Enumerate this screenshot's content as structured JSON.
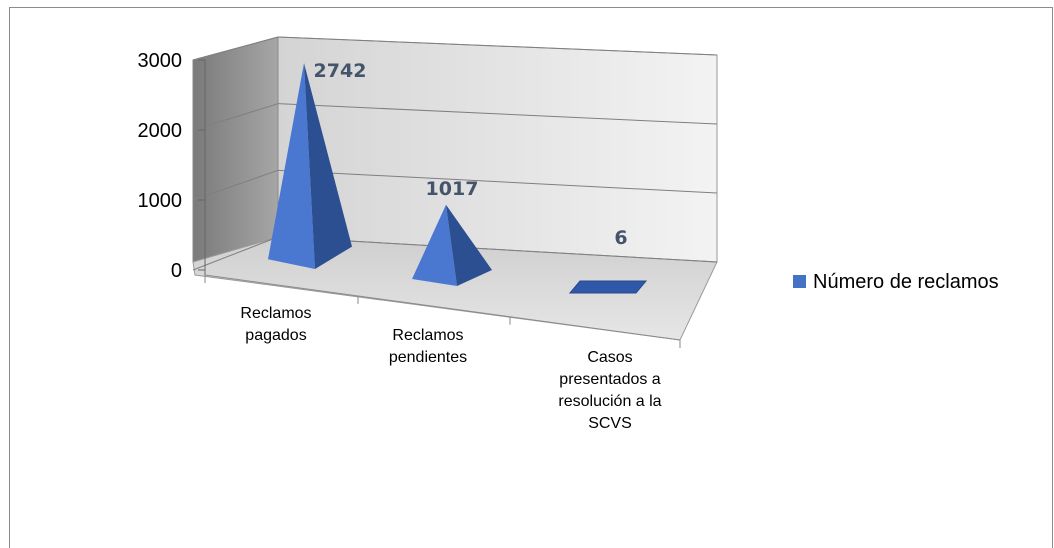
{
  "chart_data": {
    "type": "bar",
    "style": "3d-pyramid",
    "categories": [
      [
        "Reclamos",
        "pagados"
      ],
      [
        "Reclamos",
        "pendientes"
      ],
      [
        "Casos",
        "presentados a",
        "resolución a la",
        "SCVS"
      ]
    ],
    "series": [
      {
        "name": "Número de reclamos",
        "values": [
          2742,
          1017,
          6
        ],
        "color": "#4472c4"
      }
    ],
    "data_labels": [
      "2742",
      "1017",
      "6"
    ],
    "yticks": [
      "0",
      "1000",
      "2000",
      "3000"
    ],
    "ylim": [
      0,
      3000
    ],
    "grid": true,
    "legend_position": "right"
  }
}
